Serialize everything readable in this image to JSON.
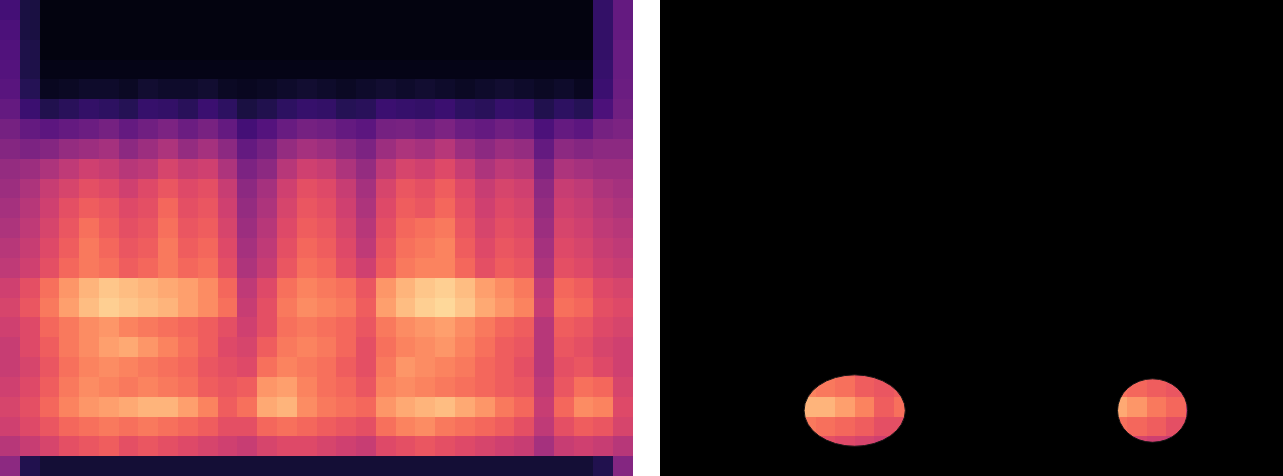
{
  "chart_data": [
    {
      "type": "heatmap",
      "xlim": [
        0,
        32
      ],
      "ylim": [
        24,
        0
      ],
      "zlim": [
        0,
        100
      ],
      "tick_labels": false,
      "cells": [
        [
          22,
          12,
          3,
          3,
          3,
          3,
          3,
          3,
          3,
          3,
          3,
          3,
          3,
          3,
          3,
          3,
          3,
          3,
          3,
          3,
          3,
          3,
          3,
          3,
          3,
          3,
          3,
          3,
          3,
          3,
          18,
          30
        ],
        [
          24,
          12,
          3,
          3,
          3,
          3,
          3,
          3,
          3,
          3,
          3,
          3,
          3,
          3,
          3,
          3,
          3,
          3,
          3,
          3,
          3,
          3,
          3,
          3,
          3,
          3,
          3,
          3,
          3,
          3,
          18,
          30
        ],
        [
          25,
          13,
          3,
          3,
          3,
          3,
          3,
          3,
          3,
          3,
          3,
          3,
          3,
          3,
          3,
          3,
          3,
          3,
          3,
          3,
          3,
          3,
          3,
          3,
          3,
          3,
          3,
          3,
          3,
          3,
          18,
          31
        ],
        [
          26,
          13,
          4,
          4,
          4,
          4,
          4,
          4,
          4,
          4,
          4,
          4,
          4,
          4,
          4,
          4,
          4,
          4,
          4,
          4,
          4,
          4,
          4,
          4,
          4,
          4,
          4,
          4,
          4,
          4,
          19,
          31
        ],
        [
          27,
          15,
          6,
          7,
          8,
          8,
          7,
          9,
          8,
          8,
          9,
          7,
          6,
          7,
          8,
          9,
          8,
          7,
          8,
          9,
          8,
          9,
          8,
          7,
          8,
          9,
          8,
          7,
          8,
          6,
          20,
          32
        ],
        [
          30,
          20,
          14,
          16,
          18,
          17,
          15,
          19,
          18,
          16,
          20,
          17,
          12,
          14,
          17,
          19,
          18,
          15,
          16,
          20,
          19,
          18,
          20,
          17,
          16,
          19,
          18,
          14,
          17,
          15,
          24,
          33
        ],
        [
          34,
          30,
          28,
          30,
          32,
          34,
          30,
          33,
          36,
          32,
          35,
          30,
          22,
          26,
          31,
          34,
          33,
          30,
          28,
          34,
          35,
          33,
          36,
          32,
          30,
          33,
          31,
          24,
          30,
          28,
          34,
          36
        ],
        [
          38,
          36,
          38,
          42,
          44,
          46,
          40,
          44,
          48,
          42,
          46,
          40,
          30,
          34,
          42,
          46,
          44,
          40,
          36,
          44,
          48,
          46,
          50,
          44,
          40,
          44,
          42,
          30,
          40,
          38,
          40,
          40
        ],
        [
          42,
          44,
          48,
          52,
          56,
          54,
          50,
          52,
          58,
          54,
          56,
          48,
          36,
          40,
          50,
          56,
          54,
          48,
          42,
          52,
          58,
          56,
          60,
          54,
          48,
          52,
          50,
          36,
          48,
          46,
          44,
          44
        ],
        [
          44,
          48,
          54,
          58,
          62,
          60,
          56,
          60,
          64,
          60,
          62,
          54,
          40,
          46,
          56,
          62,
          60,
          54,
          46,
          58,
          64,
          62,
          66,
          60,
          54,
          58,
          56,
          40,
          54,
          52,
          48,
          46
        ],
        [
          46,
          50,
          56,
          62,
          66,
          64,
          60,
          62,
          68,
          62,
          64,
          56,
          42,
          48,
          58,
          64,
          62,
          56,
          48,
          60,
          66,
          64,
          68,
          62,
          56,
          60,
          58,
          42,
          56,
          54,
          50,
          48
        ],
        [
          48,
          52,
          58,
          64,
          70,
          66,
          62,
          64,
          70,
          64,
          66,
          58,
          44,
          50,
          60,
          66,
          64,
          58,
          50,
          62,
          68,
          70,
          72,
          64,
          58,
          62,
          60,
          44,
          58,
          56,
          52,
          50
        ],
        [
          50,
          54,
          60,
          66,
          72,
          68,
          64,
          66,
          72,
          66,
          68,
          60,
          46,
          52,
          62,
          68,
          66,
          60,
          52,
          64,
          70,
          72,
          74,
          66,
          60,
          64,
          62,
          46,
          60,
          58,
          54,
          52
        ],
        [
          52,
          56,
          62,
          68,
          72,
          70,
          66,
          68,
          72,
          68,
          70,
          62,
          48,
          54,
          64,
          70,
          68,
          62,
          56,
          66,
          72,
          74,
          74,
          68,
          62,
          66,
          64,
          48,
          62,
          60,
          56,
          54
        ],
        [
          56,
          62,
          70,
          78,
          84,
          88,
          86,
          84,
          82,
          80,
          76,
          68,
          52,
          60,
          70,
          74,
          72,
          70,
          64,
          78,
          84,
          88,
          90,
          86,
          80,
          76,
          72,
          52,
          68,
          66,
          60,
          58
        ],
        [
          58,
          64,
          72,
          80,
          86,
          90,
          88,
          86,
          84,
          80,
          76,
          70,
          54,
          62,
          72,
          76,
          74,
          72,
          66,
          80,
          86,
          90,
          92,
          88,
          82,
          78,
          74,
          54,
          70,
          68,
          62,
          60
        ],
        [
          56,
          60,
          68,
          72,
          76,
          78,
          74,
          72,
          70,
          68,
          66,
          62,
          56,
          62,
          70,
          72,
          70,
          68,
          64,
          72,
          76,
          78,
          80,
          76,
          72,
          68,
          66,
          50,
          66,
          64,
          60,
          58
        ],
        [
          54,
          60,
          66,
          72,
          76,
          80,
          82,
          78,
          74,
          70,
          66,
          60,
          58,
          66,
          72,
          74,
          72,
          68,
          62,
          70,
          74,
          76,
          78,
          74,
          70,
          66,
          64,
          50,
          64,
          62,
          58,
          56
        ],
        [
          54,
          58,
          64,
          70,
          74,
          76,
          74,
          72,
          70,
          68,
          64,
          62,
          60,
          70,
          74,
          72,
          70,
          66,
          62,
          72,
          78,
          76,
          74,
          72,
          68,
          66,
          62,
          50,
          62,
          64,
          60,
          56
        ],
        [
          56,
          60,
          66,
          72,
          76,
          74,
          72,
          74,
          72,
          70,
          66,
          64,
          66,
          78,
          80,
          74,
          70,
          68,
          64,
          74,
          76,
          74,
          72,
          70,
          68,
          66,
          64,
          52,
          64,
          70,
          68,
          58
        ],
        [
          58,
          62,
          68,
          74,
          78,
          80,
          82,
          84,
          84,
          80,
          74,
          66,
          70,
          82,
          84,
          76,
          72,
          70,
          68,
          78,
          82,
          84,
          86,
          82,
          78,
          72,
          68,
          54,
          68,
          76,
          74,
          60
        ],
        [
          56,
          60,
          64,
          68,
          70,
          72,
          70,
          72,
          70,
          68,
          66,
          62,
          62,
          68,
          70,
          68,
          66,
          64,
          62,
          70,
          74,
          76,
          72,
          70,
          68,
          66,
          62,
          52,
          62,
          66,
          64,
          58
        ],
        [
          50,
          54,
          58,
          62,
          64,
          66,
          62,
          64,
          62,
          60,
          58,
          56,
          54,
          58,
          60,
          60,
          58,
          56,
          54,
          60,
          62,
          64,
          62,
          60,
          58,
          56,
          54,
          46,
          54,
          56,
          54,
          50
        ],
        [
          40,
          14,
          10,
          10,
          10,
          10,
          10,
          10,
          10,
          10,
          10,
          10,
          10,
          10,
          10,
          10,
          10,
          10,
          10,
          10,
          10,
          10,
          10,
          10,
          10,
          10,
          10,
          10,
          10,
          10,
          14,
          38
        ]
      ]
    },
    {
      "type": "masked_heatmap",
      "xlim": [
        0,
        32
      ],
      "ylim": [
        24,
        0
      ],
      "tick_labels": false,
      "regions": [
        {
          "x": 10.0,
          "y": 20.7,
          "rx": 2.6,
          "ry": 1.8
        },
        {
          "x": 25.3,
          "y": 20.7,
          "rx": 1.8,
          "ry": 1.6
        }
      ]
    }
  ]
}
